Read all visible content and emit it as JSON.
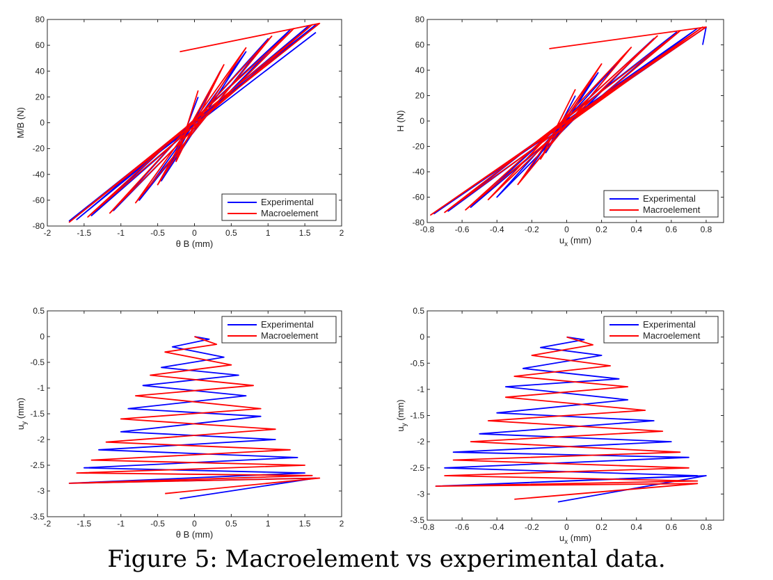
{
  "caption": "Figure 5: Macroelement vs experimental data.",
  "colors": {
    "experimental": "#0000ff",
    "macroelement": "#ff0000"
  },
  "chart_data": [
    {
      "type": "line",
      "xlabel": "θ B (mm)",
      "ylabel": "M/B (N)",
      "xlim": [
        -2,
        2
      ],
      "ylim": [
        -80,
        80
      ],
      "xticks": [
        -2,
        -1.5,
        -1,
        -0.5,
        0,
        0.5,
        1,
        1.5,
        2
      ],
      "yticks": [
        -80,
        -60,
        -40,
        -20,
        0,
        20,
        40,
        60,
        80
      ],
      "legend_position": "bottom-right",
      "series": [
        {
          "name": "Experimental",
          "color": "#0000ff",
          "points": [
            [
              0.05,
              20
            ],
            [
              -0.25,
              -25
            ],
            [
              0.35,
              40
            ],
            [
              -0.45,
              -45
            ],
            [
              0.7,
              55
            ],
            [
              -0.75,
              -60
            ],
            [
              1.0,
              65
            ],
            [
              -1.1,
              -68
            ],
            [
              1.3,
              72
            ],
            [
              -1.4,
              -72
            ],
            [
              1.55,
              75
            ],
            [
              -1.6,
              -75
            ],
            [
              1.65,
              76
            ],
            [
              -1.7,
              -76
            ],
            [
              1.65,
              70
            ]
          ]
        },
        {
          "name": "Macroelement",
          "color": "#ff0000",
          "points": [
            [
              0.05,
              25
            ],
            [
              -0.25,
              -30
            ],
            [
              0.4,
              45
            ],
            [
              -0.5,
              -48
            ],
            [
              0.7,
              58
            ],
            [
              -0.8,
              -62
            ],
            [
              1.05,
              67
            ],
            [
              -1.15,
              -70
            ],
            [
              1.35,
              73
            ],
            [
              -1.45,
              -73
            ],
            [
              1.6,
              76
            ],
            [
              -1.7,
              -77
            ],
            [
              1.7,
              77
            ],
            [
              -0.2,
              55
            ]
          ]
        }
      ]
    },
    {
      "type": "line",
      "xlabel": "u_x (mm)",
      "ylabel": "H (N)",
      "xlim": [
        -0.8,
        0.9
      ],
      "ylim": [
        -80,
        80
      ],
      "xticks": [
        -0.8,
        -0.6,
        -0.4,
        -0.2,
        0,
        0.2,
        0.4,
        0.6,
        0.8
      ],
      "yticks": [
        -80,
        -60,
        -40,
        -20,
        0,
        20,
        40,
        60,
        80
      ],
      "legend_position": "bottom-right",
      "series": [
        {
          "name": "Experimental",
          "color": "#0000ff",
          "points": [
            [
              0.05,
              20
            ],
            [
              -0.12,
              -25
            ],
            [
              0.18,
              38
            ],
            [
              -0.25,
              -45
            ],
            [
              0.35,
              55
            ],
            [
              -0.4,
              -60
            ],
            [
              0.5,
              65
            ],
            [
              -0.55,
              -68
            ],
            [
              0.63,
              70
            ],
            [
              -0.68,
              -71
            ],
            [
              0.75,
              73
            ],
            [
              -0.76,
              -73
            ],
            [
              0.8,
              74
            ],
            [
              0.78,
              60
            ]
          ]
        },
        {
          "name": "Macroelement",
          "color": "#ff0000",
          "points": [
            [
              0.05,
              25
            ],
            [
              -0.15,
              -30
            ],
            [
              0.2,
              45
            ],
            [
              -0.28,
              -50
            ],
            [
              0.37,
              58
            ],
            [
              -0.45,
              -62
            ],
            [
              0.52,
              67
            ],
            [
              -0.58,
              -70
            ],
            [
              0.65,
              71
            ],
            [
              -0.7,
              -72
            ],
            [
              0.78,
              74
            ],
            [
              -0.78,
              -74
            ],
            [
              0.8,
              74
            ],
            [
              -0.1,
              57
            ]
          ]
        }
      ]
    },
    {
      "type": "line",
      "xlabel": "θ B (mm)",
      "ylabel": "u_y (mm)",
      "xlim": [
        -2,
        2
      ],
      "ylim": [
        -3.5,
        0.5
      ],
      "xticks": [
        -2,
        -1.5,
        -1,
        -0.5,
        0,
        0.5,
        1,
        1.5,
        2
      ],
      "yticks": [
        -3.5,
        -3,
        -2.5,
        -2,
        -1.5,
        -1,
        -0.5,
        0,
        0.5
      ],
      "legend_position": "top-right",
      "series": [
        {
          "name": "Experimental",
          "color": "#0000ff",
          "points": [
            [
              0,
              0
            ],
            [
              0.2,
              -0.05
            ],
            [
              -0.3,
              -0.2
            ],
            [
              0.4,
              -0.4
            ],
            [
              -0.45,
              -0.6
            ],
            [
              0.6,
              -0.75
            ],
            [
              -0.7,
              -0.95
            ],
            [
              0.7,
              -1.15
            ],
            [
              -0.9,
              -1.4
            ],
            [
              0.9,
              -1.55
            ],
            [
              -1.0,
              -1.85
            ],
            [
              1.1,
              -2.0
            ],
            [
              -1.3,
              -2.2
            ],
            [
              1.4,
              -2.35
            ],
            [
              -1.5,
              -2.55
            ],
            [
              1.5,
              -2.65
            ],
            [
              -1.7,
              -2.85
            ],
            [
              1.65,
              -2.75
            ],
            [
              -0.2,
              -3.15
            ]
          ]
        },
        {
          "name": "Macroelement",
          "color": "#ff0000",
          "points": [
            [
              0,
              0
            ],
            [
              0.3,
              -0.15
            ],
            [
              -0.4,
              -0.3
            ],
            [
              0.5,
              -0.55
            ],
            [
              -0.6,
              -0.75
            ],
            [
              0.8,
              -0.95
            ],
            [
              -0.8,
              -1.15
            ],
            [
              0.9,
              -1.4
            ],
            [
              -1.0,
              -1.6
            ],
            [
              1.1,
              -1.8
            ],
            [
              -1.2,
              -2.05
            ],
            [
              1.3,
              -2.2
            ],
            [
              -1.4,
              -2.4
            ],
            [
              1.5,
              -2.5
            ],
            [
              -1.6,
              -2.65
            ],
            [
              1.6,
              -2.7
            ],
            [
              -1.7,
              -2.85
            ],
            [
              1.7,
              -2.75
            ],
            [
              -0.4,
              -3.05
            ]
          ]
        }
      ]
    },
    {
      "type": "line",
      "xlabel": "u_x (mm)",
      "ylabel": "u_y (mm)",
      "xlim": [
        -0.8,
        0.9
      ],
      "ylim": [
        -3.5,
        0.5
      ],
      "xticks": [
        -0.8,
        -0.6,
        -0.4,
        -0.2,
        0,
        0.2,
        0.4,
        0.6,
        0.8
      ],
      "yticks": [
        -3.5,
        -3,
        -2.5,
        -2,
        -1.5,
        -1,
        -0.5,
        0,
        0.5
      ],
      "legend_position": "top-right",
      "series": [
        {
          "name": "Experimental",
          "color": "#0000ff",
          "points": [
            [
              0,
              0
            ],
            [
              0.1,
              -0.05
            ],
            [
              -0.15,
              -0.2
            ],
            [
              0.2,
              -0.35
            ],
            [
              -0.25,
              -0.6
            ],
            [
              0.3,
              -0.8
            ],
            [
              -0.35,
              -0.95
            ],
            [
              0.35,
              -1.2
            ],
            [
              -0.4,
              -1.45
            ],
            [
              0.5,
              -1.6
            ],
            [
              -0.5,
              -1.85
            ],
            [
              0.6,
              -2.0
            ],
            [
              -0.65,
              -2.2
            ],
            [
              0.7,
              -2.3
            ],
            [
              -0.7,
              -2.5
            ],
            [
              0.75,
              -2.65
            ],
            [
              -0.75,
              -2.85
            ],
            [
              0.8,
              -2.65
            ],
            [
              -0.05,
              -3.15
            ]
          ]
        },
        {
          "name": "Macroelement",
          "color": "#ff0000",
          "points": [
            [
              0,
              0
            ],
            [
              0.15,
              -0.15
            ],
            [
              -0.2,
              -0.35
            ],
            [
              0.25,
              -0.55
            ],
            [
              -0.3,
              -0.75
            ],
            [
              0.35,
              -0.95
            ],
            [
              -0.35,
              -1.15
            ],
            [
              0.45,
              -1.4
            ],
            [
              -0.45,
              -1.6
            ],
            [
              0.55,
              -1.8
            ],
            [
              -0.55,
              -2.0
            ],
            [
              0.65,
              -2.2
            ],
            [
              -0.65,
              -2.35
            ],
            [
              0.7,
              -2.5
            ],
            [
              -0.7,
              -2.65
            ],
            [
              0.75,
              -2.75
            ],
            [
              -0.75,
              -2.85
            ],
            [
              0.75,
              -2.8
            ],
            [
              -0.3,
              -3.1
            ]
          ]
        }
      ]
    }
  ]
}
